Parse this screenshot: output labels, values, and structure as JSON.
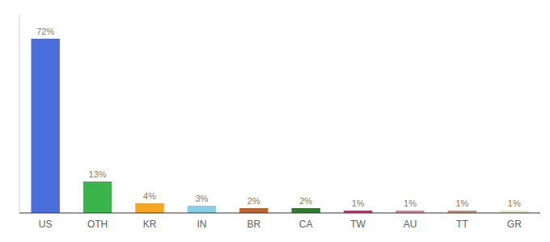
{
  "chart_data": {
    "type": "bar",
    "categories": [
      "US",
      "OTH",
      "KR",
      "IN",
      "BR",
      "CA",
      "TW",
      "AU",
      "TT",
      "GR"
    ],
    "values": [
      72,
      13,
      4,
      3,
      2,
      2,
      1,
      1,
      1,
      1
    ],
    "value_labels": [
      "72%",
      "13%",
      "4%",
      "3%",
      "2%",
      "2%",
      "1%",
      "1%",
      "1%",
      "1%"
    ],
    "colors": [
      "#4a6fdc",
      "#3ab54a",
      "#f5a623",
      "#85d0e8",
      "#c0622e",
      "#2e7a2e",
      "#e8207a",
      "#e880a0",
      "#d09070",
      "#e8e8c8"
    ],
    "ylim": [
      0,
      82
    ],
    "data_labels": true,
    "tick_labels": "x",
    "grid": false
  }
}
